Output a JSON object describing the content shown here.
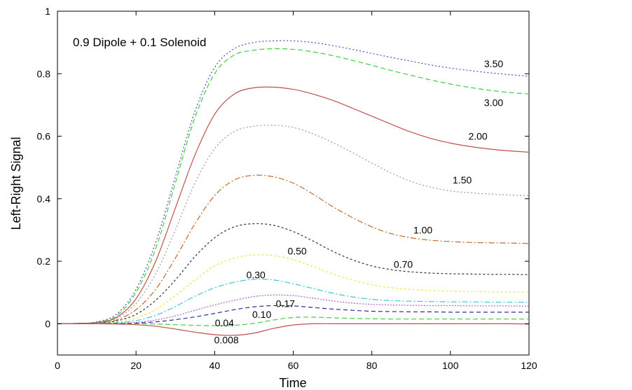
{
  "chart_data": {
    "type": "line",
    "title": "0.9 Dipole + 0.1 Solenoid",
    "xlabel": "Time",
    "ylabel": "Left-Right Signal",
    "xlim": [
      0,
      120
    ],
    "ylim": [
      -0.1,
      1
    ],
    "xticks": [
      0,
      20,
      40,
      60,
      80,
      100,
      120
    ],
    "xtick_labels": [
      "0",
      "20",
      "40",
      "60",
      "80",
      "100",
      "120"
    ],
    "yticks": [
      0,
      0.2,
      0.4,
      0.6,
      0.8,
      1
    ],
    "ytick_labels": [
      "0",
      "0.2",
      "0.4",
      "0.6",
      "0.8",
      "1"
    ],
    "grid": false,
    "series": [
      {
        "name": "3.50",
        "color": "#4b46c8",
        "dash": "2,3",
        "x": [
          0,
          5,
          10,
          15,
          20,
          25,
          30,
          35,
          40,
          45,
          50,
          55,
          60,
          65,
          70,
          75,
          80,
          85,
          90,
          95,
          100,
          105,
          110,
          115,
          120
        ],
        "y": [
          0,
          0.001,
          0.006,
          0.03,
          0.11,
          0.26,
          0.47,
          0.68,
          0.82,
          0.88,
          0.9,
          0.905,
          0.905,
          0.9,
          0.89,
          0.878,
          0.865,
          0.852,
          0.84,
          0.828,
          0.818,
          0.81,
          0.803,
          0.797,
          0.792
        ],
        "label": {
          "text": "3.50",
          "x": 111,
          "y": 0.832
        }
      },
      {
        "name": "3.00",
        "color": "#3fcf3f",
        "dash": "7,4",
        "x": [
          0,
          5,
          10,
          15,
          20,
          25,
          30,
          35,
          40,
          45,
          50,
          55,
          60,
          65,
          70,
          75,
          80,
          85,
          90,
          95,
          100,
          105,
          110,
          115,
          120
        ],
        "y": [
          0,
          0.001,
          0.005,
          0.025,
          0.1,
          0.24,
          0.45,
          0.66,
          0.8,
          0.86,
          0.875,
          0.88,
          0.878,
          0.87,
          0.858,
          0.843,
          0.827,
          0.81,
          0.795,
          0.78,
          0.767,
          0.756,
          0.747,
          0.74,
          0.735
        ],
        "label": {
          "text": "3.00",
          "x": 111,
          "y": 0.708
        }
      },
      {
        "name": "2.00",
        "color": "#c0504d",
        "dash": "",
        "x": [
          0,
          5,
          10,
          15,
          20,
          25,
          30,
          35,
          40,
          45,
          50,
          55,
          60,
          65,
          70,
          75,
          80,
          85,
          90,
          95,
          100,
          105,
          110,
          115,
          120
        ],
        "y": [
          0,
          0.001,
          0.004,
          0.02,
          0.08,
          0.2,
          0.37,
          0.54,
          0.67,
          0.735,
          0.755,
          0.757,
          0.75,
          0.735,
          0.715,
          0.69,
          0.664,
          0.638,
          0.613,
          0.593,
          0.578,
          0.567,
          0.559,
          0.553,
          0.549
        ],
        "label": {
          "text": "2.00",
          "x": 107,
          "y": 0.6
        }
      },
      {
        "name": "1.50",
        "color": "#9a9a9a",
        "dash": "2,3",
        "x": [
          0,
          5,
          10,
          15,
          20,
          25,
          30,
          35,
          40,
          45,
          50,
          55,
          60,
          65,
          70,
          75,
          80,
          85,
          90,
          95,
          100,
          105,
          110,
          115,
          120
        ],
        "y": [
          0,
          0.001,
          0.004,
          0.017,
          0.065,
          0.16,
          0.3,
          0.45,
          0.56,
          0.615,
          0.632,
          0.635,
          0.628,
          0.608,
          0.58,
          0.548,
          0.514,
          0.482,
          0.455,
          0.437,
          0.425,
          0.419,
          0.415,
          0.412,
          0.41
        ],
        "label": {
          "text": "1.50",
          "x": 103,
          "y": 0.46
        }
      },
      {
        "name": "1.00",
        "color": "#c46a2e",
        "dash": "8,3,2,3",
        "x": [
          0,
          5,
          10,
          15,
          20,
          25,
          30,
          35,
          40,
          45,
          50,
          55,
          60,
          65,
          70,
          75,
          80,
          85,
          90,
          95,
          100,
          105,
          110,
          115,
          120
        ],
        "y": [
          0,
          0.001,
          0.003,
          0.012,
          0.045,
          0.11,
          0.21,
          0.32,
          0.41,
          0.46,
          0.475,
          0.47,
          0.45,
          0.415,
          0.375,
          0.34,
          0.31,
          0.288,
          0.275,
          0.267,
          0.263,
          0.26,
          0.259,
          0.258,
          0.257
        ],
        "label": {
          "text": "1.00",
          "x": 93,
          "y": 0.3
        }
      },
      {
        "name": "0.70",
        "color": "#333333",
        "dash": "3,3",
        "x": [
          0,
          5,
          10,
          15,
          20,
          25,
          30,
          35,
          40,
          45,
          50,
          55,
          60,
          65,
          70,
          75,
          80,
          85,
          90,
          95,
          100,
          105,
          110,
          115,
          120
        ],
        "y": [
          0,
          0.001,
          0.002,
          0.009,
          0.03,
          0.075,
          0.14,
          0.215,
          0.275,
          0.31,
          0.32,
          0.315,
          0.295,
          0.265,
          0.232,
          0.205,
          0.185,
          0.173,
          0.166,
          0.162,
          0.16,
          0.159,
          0.158,
          0.158,
          0.157
        ],
        "label": {
          "text": "0.70",
          "x": 88,
          "y": 0.19
        }
      },
      {
        "name": "0.50",
        "color": "#e8e84a",
        "dash": "3,3",
        "x": [
          0,
          5,
          10,
          15,
          20,
          25,
          30,
          35,
          40,
          45,
          50,
          55,
          60,
          65,
          70,
          75,
          80,
          85,
          90,
          95,
          100,
          105,
          110,
          115,
          120
        ],
        "y": [
          0,
          0,
          0.001,
          0.005,
          0.018,
          0.045,
          0.09,
          0.14,
          0.185,
          0.21,
          0.22,
          0.218,
          0.205,
          0.183,
          0.16,
          0.14,
          0.125,
          0.115,
          0.11,
          0.106,
          0.104,
          0.103,
          0.102,
          0.102,
          0.101
        ],
        "label": {
          "text": "0.50",
          "x": 61,
          "y": 0.233
        }
      },
      {
        "name": "0.30",
        "color": "#3fc8d8",
        "dash": "8,3,2,3",
        "x": [
          0,
          5,
          10,
          15,
          20,
          25,
          30,
          35,
          40,
          45,
          50,
          55,
          60,
          65,
          70,
          75,
          80,
          85,
          90,
          95,
          100,
          105,
          110,
          115,
          120
        ],
        "y": [
          0,
          0,
          0.001,
          0.003,
          0.01,
          0.027,
          0.055,
          0.088,
          0.115,
          0.133,
          0.142,
          0.14,
          0.128,
          0.113,
          0.098,
          0.086,
          0.078,
          0.074,
          0.072,
          0.071,
          0.07,
          0.07,
          0.069,
          0.069,
          0.069
        ],
        "label": {
          "text": "0.30",
          "x": 50.5,
          "y": 0.157
        }
      },
      {
        "name": "0.17",
        "color": "#b35fc7",
        "dash": "2,2",
        "x": [
          0,
          5,
          10,
          15,
          20,
          25,
          30,
          35,
          40,
          45,
          50,
          55,
          60,
          65,
          70,
          75,
          80,
          85,
          90,
          95,
          100,
          105,
          110,
          115,
          120
        ],
        "y": [
          0,
          0,
          0,
          0.001,
          0.004,
          0.012,
          0.025,
          0.043,
          0.06,
          0.075,
          0.087,
          0.092,
          0.09,
          0.082,
          0.073,
          0.066,
          0.062,
          0.06,
          0.059,
          0.058,
          0.058,
          0.057,
          0.057,
          0.057,
          0.056
        ],
        "label": {
          "text": "0.17",
          "x": 58,
          "y": 0.065
        }
      },
      {
        "name": "0.10",
        "color": "#2b2b9c",
        "dash": "6,4",
        "x": [
          0,
          5,
          10,
          15,
          20,
          25,
          30,
          35,
          40,
          45,
          50,
          55,
          60,
          65,
          70,
          75,
          80,
          85,
          90,
          95,
          100,
          105,
          110,
          115,
          120
        ],
        "y": [
          0,
          0,
          0,
          0.001,
          0.002,
          0.006,
          0.013,
          0.022,
          0.033,
          0.045,
          0.054,
          0.058,
          0.057,
          0.052,
          0.047,
          0.043,
          0.04,
          0.039,
          0.038,
          0.038,
          0.037,
          0.037,
          0.037,
          0.037,
          0.037
        ],
        "label": {
          "text": "0.10",
          "x": 52,
          "y": 0.03
        }
      },
      {
        "name": "0.04",
        "color": "#3fcf3f",
        "dash": "7,4",
        "x": [
          0,
          5,
          10,
          15,
          20,
          25,
          30,
          35,
          40,
          45,
          50,
          55,
          60,
          65,
          70,
          75,
          80,
          85,
          90,
          95,
          100,
          105,
          110,
          115,
          120
        ],
        "y": [
          0,
          0,
          0,
          0,
          0,
          -0.001,
          -0.003,
          -0.005,
          -0.006,
          -0.005,
          0.001,
          0.012,
          0.02,
          0.021,
          0.019,
          0.017,
          0.016,
          0.015,
          0.015,
          0.015,
          0.015,
          0.015,
          0.015,
          0.015,
          0.015
        ],
        "label": {
          "text": "0.04",
          "x": 42.5,
          "y": 0.003
        }
      },
      {
        "name": "0.008",
        "color": "#c0504d",
        "dash": "",
        "x": [
          0,
          5,
          10,
          15,
          20,
          25,
          30,
          35,
          40,
          45,
          50,
          55,
          60,
          65,
          70,
          75,
          80,
          85,
          90,
          95,
          100,
          105,
          110,
          115,
          120
        ],
        "y": [
          0,
          0,
          0,
          -0.001,
          -0.003,
          -0.008,
          -0.017,
          -0.027,
          -0.035,
          -0.037,
          -0.03,
          -0.015,
          -0.004,
          0,
          0,
          0,
          0,
          0,
          0,
          0,
          0,
          0,
          0,
          0,
          -0.001
        ],
        "label": {
          "text": "0.008",
          "x": 43,
          "y": -0.052
        }
      }
    ]
  }
}
